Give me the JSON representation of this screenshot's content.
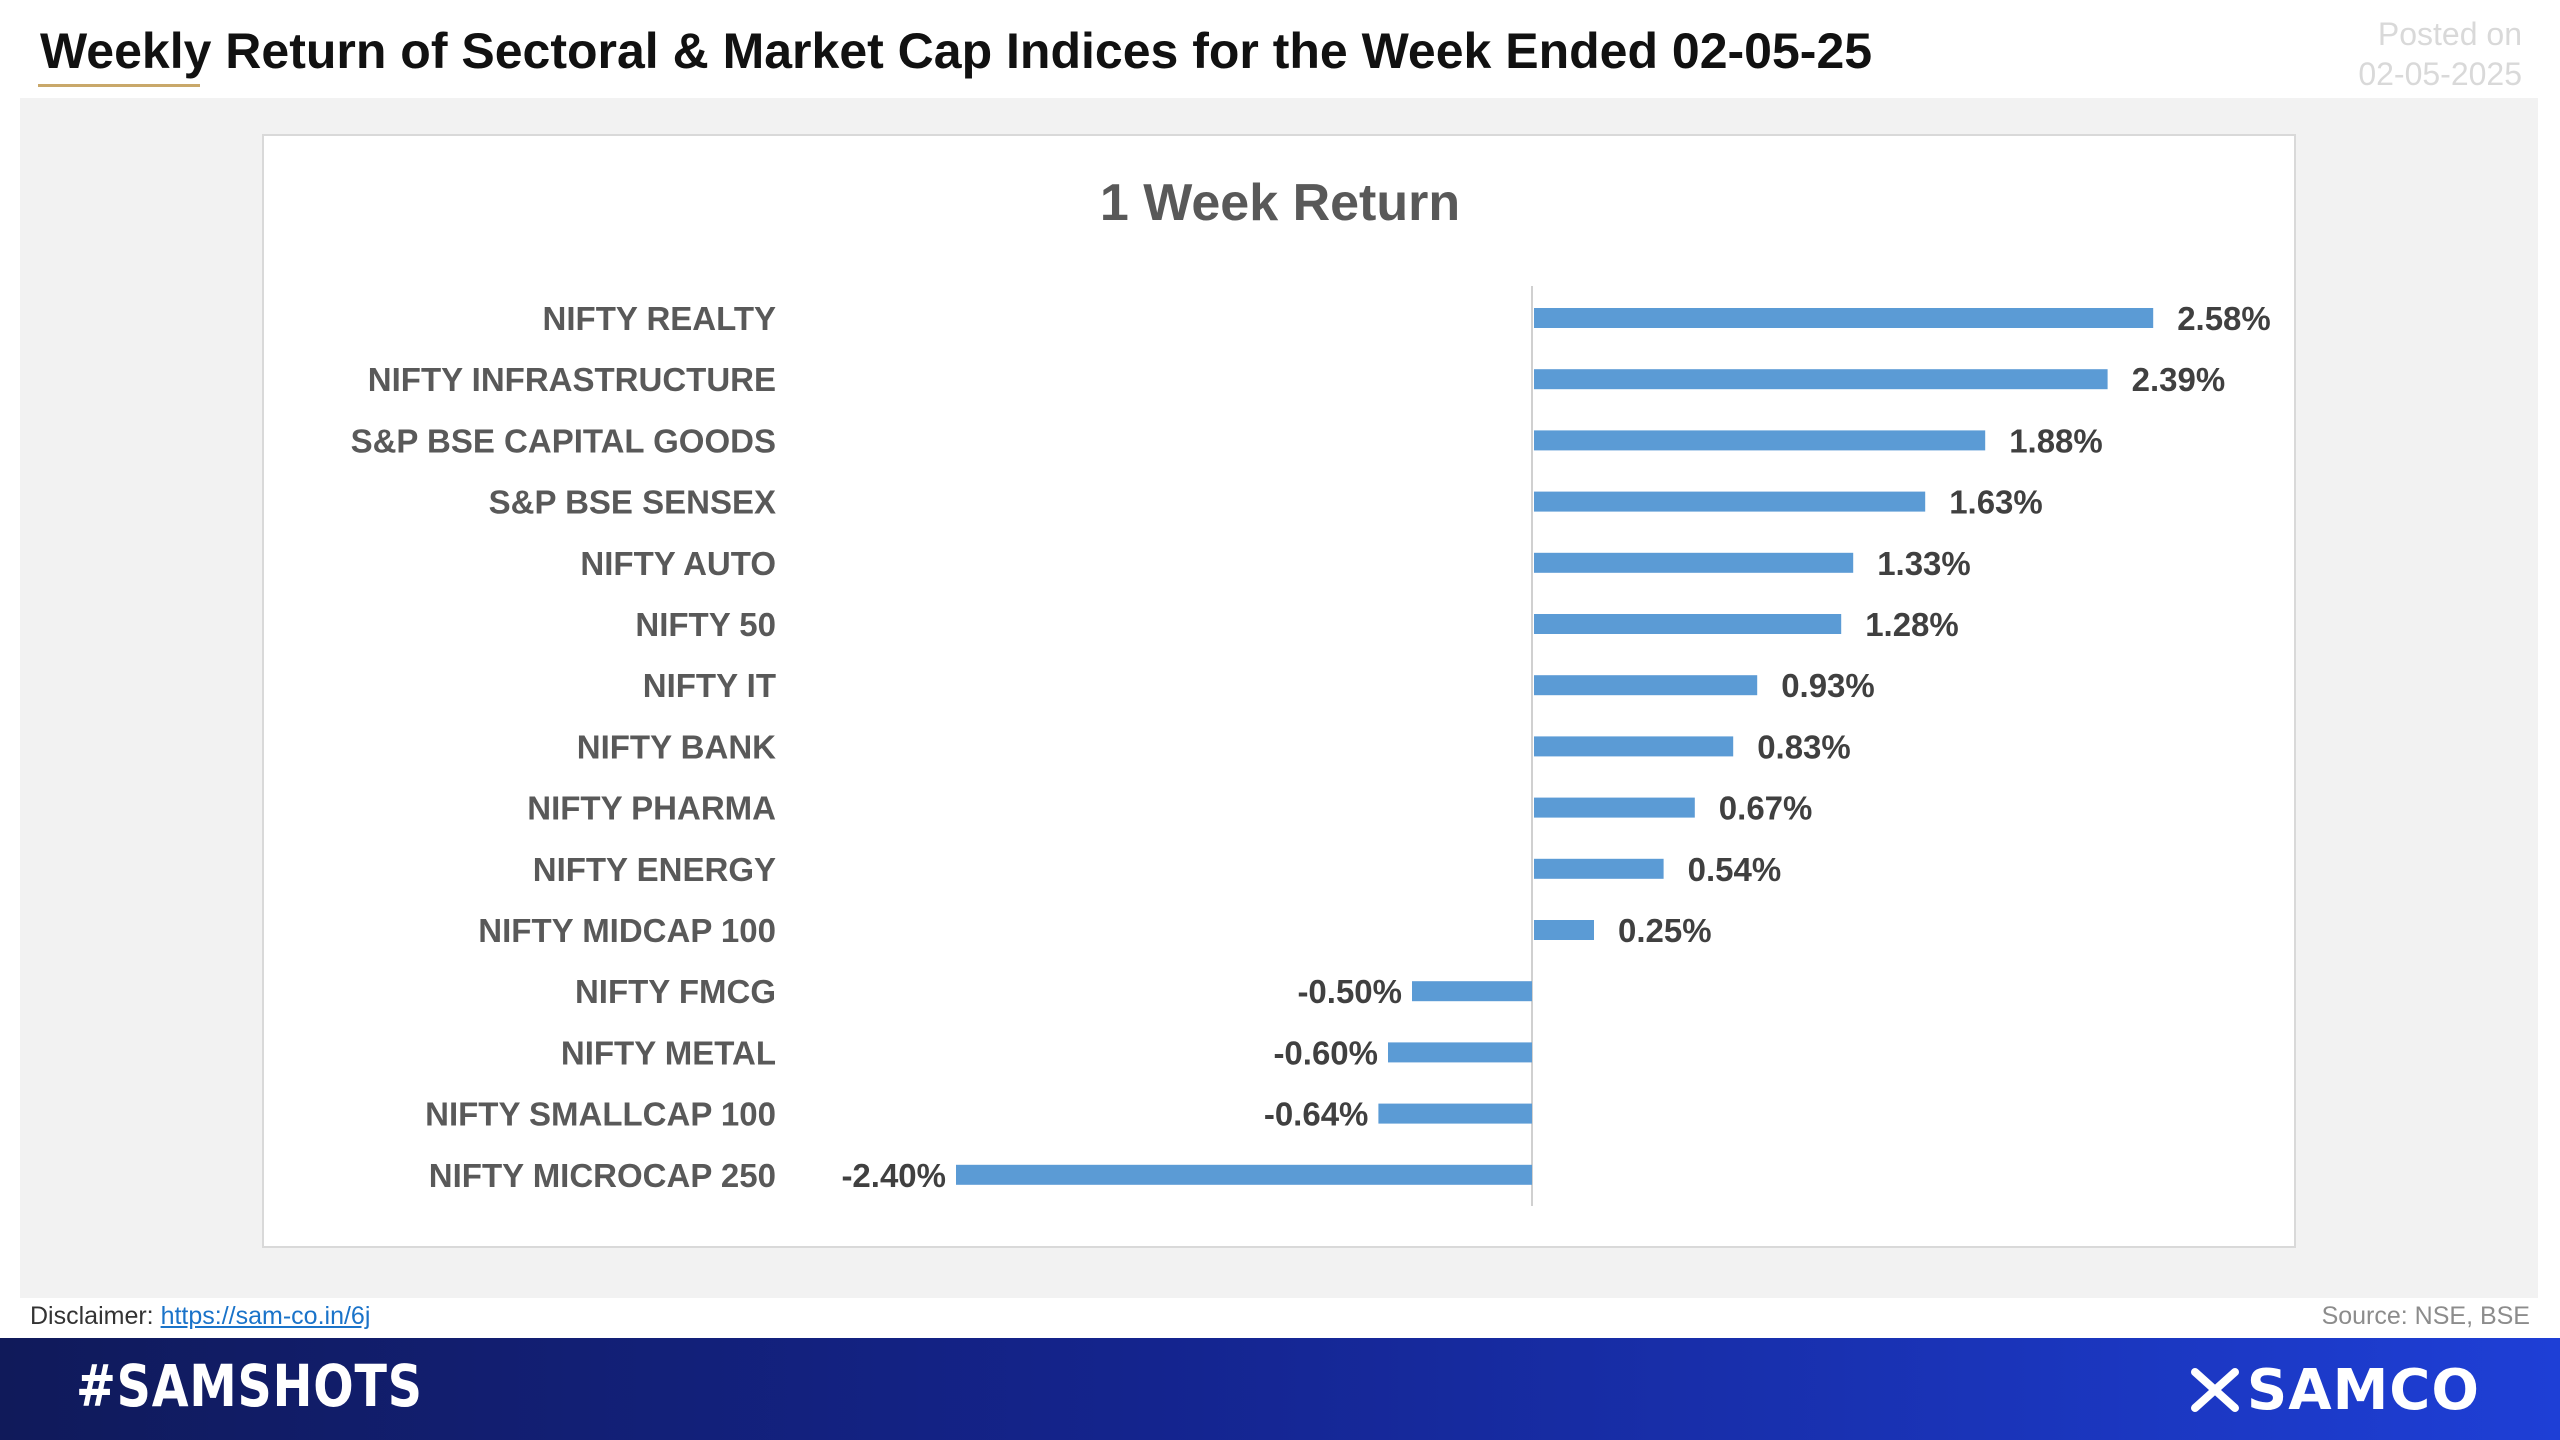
{
  "header": {
    "title": "Weekly Return of Sectoral & Market Cap Indices for the Week Ended 02-05-25",
    "posted_label": "Posted on",
    "posted_date": "02-05-2025"
  },
  "chart_data": {
    "type": "bar",
    "orientation": "horizontal",
    "title": "1 Week Return",
    "categories": [
      "NIFTY REALTY",
      "NIFTY INFRASTRUCTURE",
      "S&P BSE CAPITAL GOODS",
      "S&P BSE SENSEX",
      "NIFTY AUTO",
      "NIFTY 50",
      "NIFTY IT",
      "NIFTY BANK",
      "NIFTY PHARMA",
      "NIFTY ENERGY",
      "NIFTY MIDCAP 100",
      "NIFTY FMCG",
      "NIFTY METAL",
      "NIFTY SMALLCAP 100",
      "NIFTY MICROCAP 250"
    ],
    "values": [
      2.58,
      2.39,
      1.88,
      1.63,
      1.33,
      1.28,
      0.93,
      0.83,
      0.67,
      0.54,
      0.25,
      -0.5,
      -0.6,
      -0.64,
      -2.4
    ],
    "data_labels": [
      "2.58%",
      "2.39%",
      "1.88%",
      "1.63%",
      "1.33%",
      "1.28%",
      "0.93%",
      "0.83%",
      "0.67%",
      "0.54%",
      "0.25%",
      "-0.50%",
      "-0.60%",
      "-0.64%",
      "-2.40%"
    ],
    "unit": "%",
    "xlim": [
      -2.4,
      2.58
    ],
    "bar_color": "#5b9bd5",
    "grid": false,
    "legend": "none"
  },
  "footer": {
    "disclaimer_label": "Disclaimer:",
    "disclaimer_link": "https://sam-co.in/6j",
    "source": "Source: NSE, BSE",
    "hashtag": "#SAMSHOTS",
    "brand": "SAMCO"
  }
}
